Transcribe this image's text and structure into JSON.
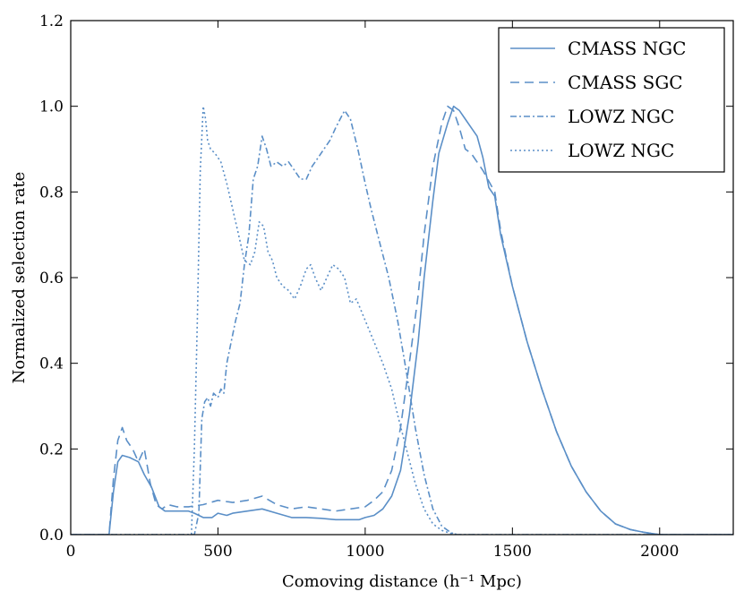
{
  "chart_data": {
    "type": "line",
    "title": "",
    "xlabel": "Comoving distance (h⁻¹ Mpc)",
    "ylabel": "Normalized selection rate",
    "xlim": [
      0,
      2250
    ],
    "ylim": [
      0,
      1.2
    ],
    "xticks": [
      0,
      500,
      1000,
      1500,
      2000
    ],
    "yticks": [
      0.0,
      0.2,
      0.4,
      0.6,
      0.8,
      1.0,
      1.2
    ],
    "xtick_labels": [
      "0",
      "500",
      "1000",
      "1500",
      "2000"
    ],
    "ytick_labels": [
      "0.0",
      "0.2",
      "0.4",
      "0.6",
      "0.8",
      "1.0",
      "1.2"
    ],
    "grid": false,
    "legend_position": "top-right",
    "series": [
      {
        "name": "CMASS NGC",
        "linestyle": "solid",
        "color": "#5b8fc7",
        "x": [
          0,
          130,
          145,
          160,
          175,
          200,
          230,
          250,
          275,
          300,
          320,
          350,
          400,
          420,
          450,
          480,
          500,
          530,
          550,
          600,
          650,
          700,
          750,
          800,
          850,
          900,
          950,
          980,
          1000,
          1030,
          1060,
          1090,
          1120,
          1150,
          1180,
          1200,
          1230,
          1250,
          1280,
          1300,
          1320,
          1340,
          1360,
          1380,
          1400,
          1420,
          1440,
          1460,
          1500,
          1550,
          1600,
          1650,
          1700,
          1750,
          1800,
          1850,
          1900,
          1950,
          2000,
          2250
        ],
        "y": [
          0.0,
          0.0,
          0.1,
          0.17,
          0.185,
          0.18,
          0.17,
          0.14,
          0.11,
          0.065,
          0.055,
          0.055,
          0.055,
          0.05,
          0.04,
          0.04,
          0.05,
          0.045,
          0.05,
          0.055,
          0.06,
          0.05,
          0.04,
          0.04,
          0.038,
          0.035,
          0.035,
          0.035,
          0.04,
          0.045,
          0.06,
          0.09,
          0.15,
          0.28,
          0.45,
          0.6,
          0.78,
          0.89,
          0.96,
          1.0,
          0.99,
          0.97,
          0.95,
          0.93,
          0.88,
          0.81,
          0.79,
          0.7,
          0.58,
          0.45,
          0.34,
          0.24,
          0.16,
          0.1,
          0.055,
          0.025,
          0.012,
          0.005,
          0.0,
          0.0
        ]
      },
      {
        "name": "CMASS SGC",
        "linestyle": "dashed",
        "color": "#5b8fc7",
        "x": [
          0,
          130,
          145,
          160,
          175,
          190,
          210,
          230,
          250,
          270,
          290,
          310,
          330,
          360,
          400,
          450,
          500,
          550,
          600,
          650,
          700,
          750,
          800,
          850,
          900,
          950,
          1000,
          1030,
          1060,
          1090,
          1120,
          1150,
          1180,
          1200,
          1230,
          1260,
          1280,
          1300,
          1320,
          1340,
          1360,
          1380,
          1400,
          1440,
          1460,
          1500,
          1550,
          1600,
          1650,
          1700,
          1750,
          1800,
          1850,
          1900,
          1950,
          2000,
          2250
        ],
        "y": [
          0.0,
          0.0,
          0.13,
          0.22,
          0.25,
          0.22,
          0.2,
          0.17,
          0.2,
          0.12,
          0.07,
          0.06,
          0.07,
          0.065,
          0.065,
          0.07,
          0.08,
          0.075,
          0.08,
          0.09,
          0.07,
          0.06,
          0.065,
          0.06,
          0.055,
          0.06,
          0.065,
          0.08,
          0.1,
          0.15,
          0.25,
          0.4,
          0.56,
          0.7,
          0.86,
          0.96,
          1.0,
          0.99,
          0.95,
          0.9,
          0.89,
          0.87,
          0.85,
          0.8,
          0.71,
          0.58,
          0.45,
          0.34,
          0.24,
          0.16,
          0.1,
          0.055,
          0.025,
          0.012,
          0.005,
          0.0,
          0.0
        ]
      },
      {
        "name": "LOWZ NGC",
        "linestyle": "dashdot",
        "color": "#5b8fc7",
        "x": [
          0,
          400,
          420,
          435,
          445,
          455,
          465,
          475,
          485,
          500,
          510,
          520,
          530,
          545,
          560,
          575,
          590,
          605,
          620,
          635,
          650,
          665,
          680,
          700,
          720,
          740,
          760,
          780,
          800,
          820,
          840,
          860,
          880,
          900,
          915,
          930,
          950,
          975,
          1000,
          1020,
          1050,
          1080,
          1110,
          1140,
          1170,
          1200,
          1230,
          1260,
          1290,
          1310,
          1330,
          2250
        ],
        "y": [
          0.0,
          0.0,
          0.0,
          0.05,
          0.27,
          0.31,
          0.32,
          0.3,
          0.33,
          0.32,
          0.34,
          0.33,
          0.4,
          0.45,
          0.5,
          0.54,
          0.63,
          0.7,
          0.83,
          0.86,
          0.93,
          0.9,
          0.86,
          0.87,
          0.86,
          0.87,
          0.85,
          0.83,
          0.83,
          0.86,
          0.88,
          0.9,
          0.92,
          0.95,
          0.97,
          0.99,
          0.97,
          0.9,
          0.82,
          0.76,
          0.68,
          0.6,
          0.5,
          0.38,
          0.25,
          0.14,
          0.06,
          0.02,
          0.005,
          0.0,
          0.0,
          0.0
        ]
      },
      {
        "name": "LOWZ NGC",
        "linestyle": "dotted",
        "color": "#5b8fc7",
        "x": [
          0,
          400,
          410,
          420,
          430,
          440,
          450,
          458,
          465,
          475,
          490,
          510,
          530,
          550,
          570,
          590,
          610,
          625,
          640,
          655,
          670,
          685,
          700,
          720,
          740,
          760,
          780,
          800,
          815,
          830,
          850,
          870,
          890,
          910,
          930,
          950,
          970,
          1000,
          1030,
          1060,
          1090,
          1110,
          1140,
          1170,
          1200,
          1230,
          1260,
          1290,
          1320,
          2250
        ],
        "y": [
          0.0,
          0.0,
          0.0,
          0.2,
          0.5,
          0.85,
          1.0,
          0.97,
          0.92,
          0.9,
          0.89,
          0.87,
          0.82,
          0.76,
          0.7,
          0.64,
          0.63,
          0.66,
          0.73,
          0.72,
          0.66,
          0.64,
          0.6,
          0.58,
          0.57,
          0.55,
          0.58,
          0.62,
          0.63,
          0.6,
          0.57,
          0.6,
          0.63,
          0.62,
          0.6,
          0.54,
          0.55,
          0.5,
          0.45,
          0.4,
          0.34,
          0.28,
          0.2,
          0.12,
          0.06,
          0.025,
          0.01,
          0.003,
          0.0,
          0.0
        ]
      }
    ]
  }
}
